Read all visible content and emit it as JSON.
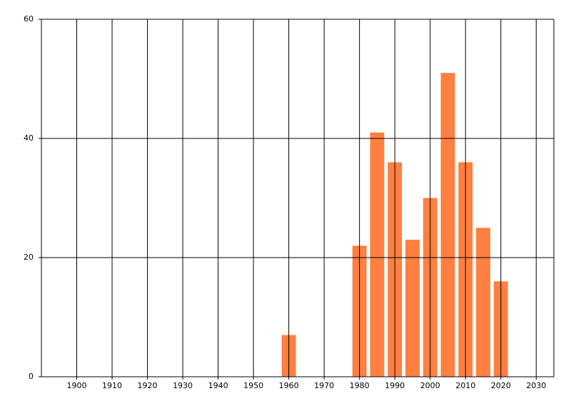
{
  "chart_data": {
    "type": "bar",
    "x": [
      1960,
      1980,
      1985,
      1990,
      1995,
      2000,
      2005,
      2010,
      2015,
      2020
    ],
    "values": [
      7,
      22,
      41,
      36,
      23,
      30,
      51,
      36,
      25,
      16
    ],
    "color": "#ff7f40",
    "xlim": [
      1890,
      2035
    ],
    "xticks": [
      1900,
      1910,
      1920,
      1930,
      1940,
      1950,
      1960,
      1970,
      1980,
      1990,
      2000,
      2010,
      2020,
      2030
    ],
    "ylim": [
      0,
      60
    ],
    "yticks": [
      0,
      20,
      40,
      60
    ],
    "grid": true
  }
}
